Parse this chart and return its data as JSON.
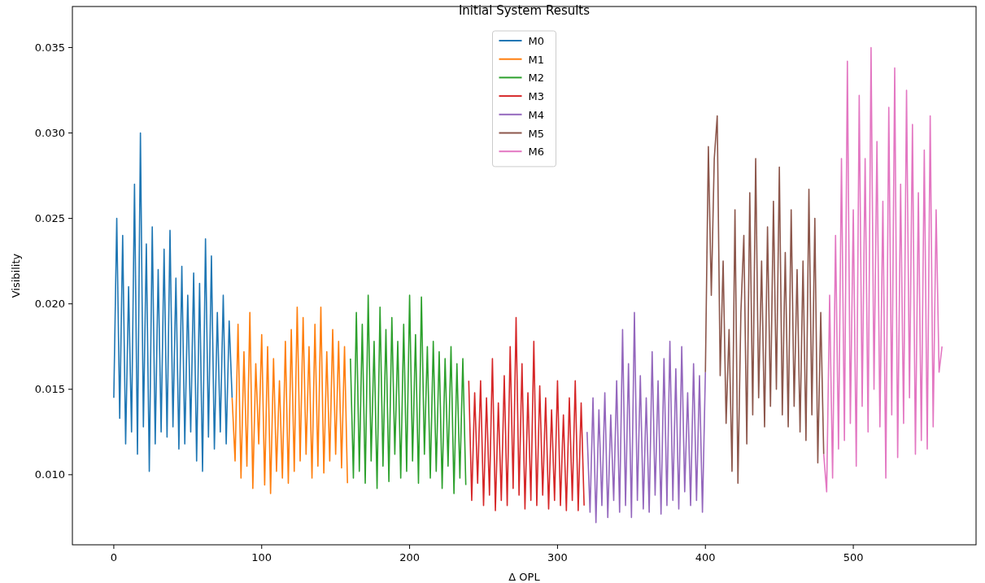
{
  "chart_data": {
    "type": "line",
    "title": "Initial System Results",
    "xlabel": "Δ OPL",
    "ylabel": "Visibility",
    "xlim": [
      -28,
      583
    ],
    "xticks": [
      0,
      100,
      200,
      300,
      400,
      500
    ],
    "ylim": [
      0.0059,
      0.0374
    ],
    "yticks": [
      {
        "value": 0.01,
        "label": "0.010"
      },
      {
        "value": 0.015,
        "label": "0.015"
      },
      {
        "value": 0.02,
        "label": "0.020"
      },
      {
        "value": 0.025,
        "label": "0.025"
      },
      {
        "value": 0.03,
        "label": "0.030"
      },
      {
        "value": 0.035,
        "label": "0.035"
      }
    ],
    "grid": false,
    "legend": "top",
    "line_style": "solid",
    "series": [
      {
        "name": "M0",
        "color": "#1f77b4",
        "x": [
          0,
          2,
          4,
          6,
          8,
          10,
          12,
          14,
          16,
          18,
          20,
          22,
          24,
          26,
          28,
          30,
          32,
          34,
          36,
          38,
          40,
          42,
          44,
          46,
          48,
          50,
          52,
          54,
          56,
          58,
          60,
          62,
          64,
          66,
          68,
          70,
          72,
          74,
          76,
          78,
          80
        ],
        "values": [
          0.0145,
          0.025,
          0.0133,
          0.024,
          0.0118,
          0.021,
          0.0125,
          0.027,
          0.0112,
          0.03,
          0.0128,
          0.0235,
          0.0102,
          0.0245,
          0.0118,
          0.022,
          0.0125,
          0.0232,
          0.0122,
          0.0243,
          0.0128,
          0.0215,
          0.0115,
          0.0222,
          0.0118,
          0.0205,
          0.0125,
          0.0218,
          0.0108,
          0.0212,
          0.0102,
          0.0238,
          0.0122,
          0.0228,
          0.0115,
          0.0195,
          0.0125,
          0.0205,
          0.0118,
          0.019,
          0.0145
        ]
      },
      {
        "name": "M1",
        "color": "#ff7f0e",
        "x": [
          80,
          82,
          84,
          86,
          88,
          90,
          92,
          94,
          96,
          98,
          100,
          102,
          104,
          106,
          108,
          110,
          112,
          114,
          116,
          118,
          120,
          122,
          124,
          126,
          128,
          130,
          132,
          134,
          136,
          138,
          140,
          142,
          144,
          146,
          148,
          150,
          152,
          154,
          156,
          158
        ],
        "values": [
          0.0145,
          0.0108,
          0.0188,
          0.0098,
          0.0172,
          0.0105,
          0.0195,
          0.0092,
          0.0165,
          0.0118,
          0.0182,
          0.0094,
          0.0175,
          0.0089,
          0.0168,
          0.0102,
          0.0155,
          0.0098,
          0.0178,
          0.0095,
          0.0185,
          0.0102,
          0.0198,
          0.0108,
          0.0192,
          0.0112,
          0.0175,
          0.0098,
          0.0188,
          0.0105,
          0.0198,
          0.0101,
          0.0172,
          0.0108,
          0.0185,
          0.0112,
          0.0178,
          0.0104,
          0.0175,
          0.0095
        ]
      },
      {
        "name": "M2",
        "color": "#2ca02c",
        "x": [
          160,
          162,
          164,
          166,
          168,
          170,
          172,
          174,
          176,
          178,
          180,
          182,
          184,
          186,
          188,
          190,
          192,
          194,
          196,
          198,
          200,
          202,
          204,
          206,
          208,
          210,
          212,
          214,
          216,
          218,
          220,
          222,
          224,
          226,
          228,
          230,
          232,
          234,
          236,
          238
        ],
        "values": [
          0.0168,
          0.0098,
          0.0195,
          0.0102,
          0.0188,
          0.0095,
          0.0205,
          0.0108,
          0.0178,
          0.0092,
          0.0198,
          0.0105,
          0.0185,
          0.0096,
          0.0192,
          0.0112,
          0.0178,
          0.0098,
          0.0188,
          0.0102,
          0.0205,
          0.0108,
          0.0182,
          0.0095,
          0.0204,
          0.0112,
          0.0175,
          0.0098,
          0.0178,
          0.0102,
          0.0172,
          0.0092,
          0.0168,
          0.0105,
          0.0175,
          0.0089,
          0.0165,
          0.0098,
          0.0168,
          0.0094
        ]
      },
      {
        "name": "M3",
        "color": "#d62728",
        "x": [
          240,
          242,
          244,
          246,
          248,
          250,
          252,
          254,
          256,
          258,
          260,
          262,
          264,
          266,
          268,
          270,
          272,
          274,
          276,
          278,
          280,
          282,
          284,
          286,
          288,
          290,
          292,
          294,
          296,
          298,
          300,
          302,
          304,
          306,
          308,
          310,
          312,
          314,
          316,
          318
        ],
        "values": [
          0.0155,
          0.0085,
          0.0148,
          0.0095,
          0.0155,
          0.0082,
          0.0145,
          0.0088,
          0.0168,
          0.0079,
          0.0142,
          0.0085,
          0.0158,
          0.0082,
          0.0175,
          0.0092,
          0.0192,
          0.0088,
          0.0165,
          0.008,
          0.0148,
          0.0085,
          0.0178,
          0.0082,
          0.0152,
          0.0088,
          0.0145,
          0.008,
          0.0138,
          0.0085,
          0.0155,
          0.0082,
          0.0135,
          0.0079,
          0.0145,
          0.0085,
          0.0155,
          0.0079,
          0.0142,
          0.0082
        ]
      },
      {
        "name": "M4",
        "color": "#9467bd",
        "x": [
          320,
          322,
          324,
          326,
          328,
          330,
          332,
          334,
          336,
          338,
          340,
          342,
          344,
          346,
          348,
          350,
          352,
          354,
          356,
          358,
          360,
          362,
          364,
          366,
          368,
          370,
          372,
          374,
          376,
          378,
          380,
          382,
          384,
          386,
          388,
          390,
          392,
          394,
          396,
          398,
          400
        ],
        "values": [
          0.0125,
          0.0078,
          0.0145,
          0.0072,
          0.0138,
          0.0082,
          0.0148,
          0.0075,
          0.0135,
          0.0085,
          0.0155,
          0.0078,
          0.0185,
          0.0082,
          0.0165,
          0.0075,
          0.0195,
          0.0085,
          0.0158,
          0.008,
          0.0145,
          0.0078,
          0.0172,
          0.0088,
          0.0155,
          0.0077,
          0.0168,
          0.0082,
          0.0178,
          0.0085,
          0.0162,
          0.008,
          0.0175,
          0.009,
          0.0148,
          0.0082,
          0.0165,
          0.0085,
          0.0158,
          0.0078,
          0.016
        ]
      },
      {
        "name": "M5",
        "color": "#8c564b",
        "x": [
          400,
          402,
          404,
          406,
          408,
          410,
          412,
          414,
          416,
          418,
          420,
          422,
          424,
          426,
          428,
          430,
          432,
          434,
          436,
          438,
          440,
          442,
          444,
          446,
          448,
          450,
          452,
          454,
          456,
          458,
          460,
          462,
          464,
          466,
          468,
          470,
          472,
          474,
          476,
          478,
          480
        ],
        "values": [
          0.016,
          0.0292,
          0.0205,
          0.0285,
          0.031,
          0.0158,
          0.0225,
          0.013,
          0.0185,
          0.0102,
          0.0255,
          0.0095,
          0.0195,
          0.024,
          0.0118,
          0.0265,
          0.0135,
          0.0285,
          0.0145,
          0.0225,
          0.0128,
          0.0245,
          0.014,
          0.026,
          0.015,
          0.028,
          0.0135,
          0.023,
          0.0128,
          0.0255,
          0.014,
          0.022,
          0.0125,
          0.0225,
          0.012,
          0.0267,
          0.0135,
          0.025,
          0.0107,
          0.0195,
          0.0112
        ]
      },
      {
        "name": "M6",
        "color": "#e377c2",
        "x": [
          480,
          482,
          484,
          486,
          488,
          490,
          492,
          494,
          496,
          498,
          500,
          502,
          504,
          506,
          508,
          510,
          512,
          514,
          516,
          518,
          520,
          522,
          524,
          526,
          528,
          530,
          532,
          534,
          536,
          538,
          540,
          542,
          544,
          546,
          548,
          550,
          552,
          554,
          556,
          558,
          560
        ],
        "values": [
          0.0112,
          0.009,
          0.0205,
          0.0098,
          0.024,
          0.0115,
          0.0285,
          0.012,
          0.0342,
          0.013,
          0.0255,
          0.0105,
          0.0322,
          0.014,
          0.0285,
          0.0125,
          0.035,
          0.015,
          0.0295,
          0.0128,
          0.026,
          0.0098,
          0.0315,
          0.0135,
          0.0338,
          0.011,
          0.027,
          0.013,
          0.0325,
          0.0145,
          0.0305,
          0.0112,
          0.0265,
          0.012,
          0.029,
          0.0115,
          0.031,
          0.0128,
          0.0255,
          0.016,
          0.0175
        ]
      }
    ]
  }
}
